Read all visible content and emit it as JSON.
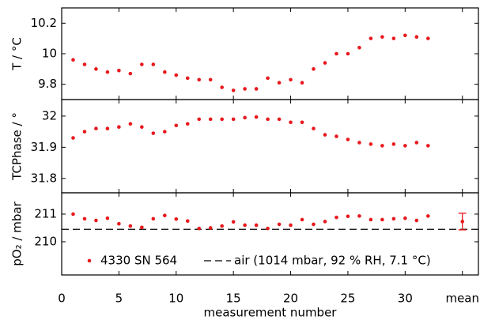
{
  "chart_data": [
    {
      "type": "scatter",
      "ylabel": "T / °C",
      "x": [
        1,
        2,
        3,
        4,
        5,
        6,
        7,
        8,
        9,
        10,
        11,
        12,
        13,
        14,
        15,
        16,
        17,
        18,
        19,
        20,
        21,
        22,
        23,
        24,
        25,
        26,
        27,
        28,
        29,
        30,
        31,
        32
      ],
      "xlim": [
        0,
        36.4
      ],
      "ylim": [
        9.7,
        10.3
      ],
      "yticks": [
        9.8,
        10,
        10.2
      ],
      "series": [
        {
          "name": "4330 SN 564",
          "color": "#e8191d",
          "values": [
            9.96,
            9.93,
            9.9,
            9.88,
            9.89,
            9.87,
            9.93,
            9.93,
            9.88,
            9.86,
            9.84,
            9.83,
            9.83,
            9.78,
            9.76,
            9.77,
            9.77,
            9.84,
            9.81,
            9.83,
            9.81,
            9.9,
            9.94,
            10.0,
            10.0,
            10.04,
            10.1,
            10.11,
            10.1,
            10.12,
            10.11,
            10.1
          ]
        }
      ]
    },
    {
      "type": "scatter",
      "ylabel": "TCPhase / °",
      "x": [
        1,
        2,
        3,
        4,
        5,
        6,
        7,
        8,
        9,
        10,
        11,
        12,
        13,
        14,
        15,
        16,
        17,
        18,
        19,
        20,
        21,
        22,
        23,
        24,
        25,
        26,
        27,
        28,
        29,
        30,
        31,
        32
      ],
      "xlim": [
        0,
        36.4
      ],
      "ylim": [
        31.754,
        32.053
      ],
      "yticks": [
        31.8,
        31.9,
        32
      ],
      "series": [
        {
          "name": "4330 SN 564",
          "color": "#e8191d",
          "values": [
            31.93,
            31.95,
            31.96,
            31.96,
            31.965,
            31.975,
            31.965,
            31.945,
            31.95,
            31.97,
            31.975,
            31.99,
            31.99,
            31.99,
            31.99,
            31.995,
            31.997,
            31.99,
            31.99,
            31.98,
            31.98,
            31.96,
            31.94,
            31.935,
            31.925,
            31.915,
            31.91,
            31.905,
            31.91,
            31.905,
            31.915,
            31.905
          ]
        }
      ]
    },
    {
      "type": "scatter",
      "ylabel": "pO₂ / mbar",
      "xlabel": "measurement number",
      "x": [
        1,
        2,
        3,
        4,
        5,
        6,
        7,
        8,
        9,
        10,
        11,
        12,
        13,
        14,
        15,
        16,
        17,
        18,
        19,
        20,
        21,
        22,
        23,
        24,
        25,
        26,
        27,
        28,
        29,
        30,
        31,
        32
      ],
      "xlim": [
        0,
        36.4
      ],
      "ylim": [
        208.8,
        211.77
      ],
      "yticks": [
        210,
        211
      ],
      "xticks": [
        0,
        5,
        10,
        15,
        20,
        25,
        30,
        {
          "value": 35,
          "label": "mean"
        }
      ],
      "legend": "lower left",
      "series": [
        {
          "name": "4330 SN 564",
          "color": "#e8191d",
          "values": [
            211.0,
            210.83,
            210.77,
            210.85,
            210.65,
            210.57,
            210.52,
            210.83,
            210.95,
            210.82,
            210.75,
            210.48,
            210.5,
            210.57,
            210.72,
            210.6,
            210.6,
            210.48,
            210.63,
            210.6,
            210.8,
            210.63,
            210.73,
            210.88,
            210.92,
            210.93,
            210.8,
            210.8,
            210.83,
            210.85,
            210.77,
            210.93
          ]
        }
      ],
      "reference": {
        "name": "air (1014 mbar, 92 % RH, 7.1 °C)",
        "value": 210.45,
        "color": "#000000"
      },
      "mean": {
        "x": 35,
        "value": 210.73,
        "error": 0.3,
        "color": "#e8191d"
      }
    }
  ]
}
